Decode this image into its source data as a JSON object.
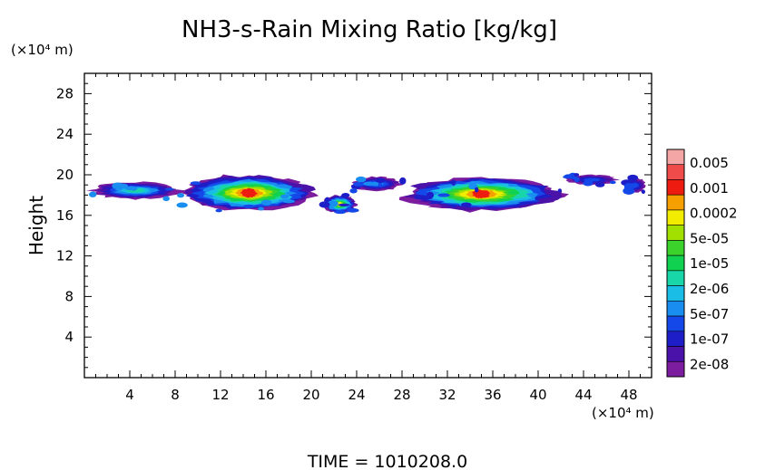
{
  "title": "NH3-s-Rain Mixing Ratio [kg/kg]",
  "footer": "TIME  =  1010208.0",
  "chart_data": {
    "type": "heatmap",
    "title": "NH3-s-Rain Mixing Ratio [kg/kg]",
    "xlabel": "",
    "ylabel": "Height",
    "x_unit_label": "(×10⁴ m)",
    "y_unit_label": "(×10⁴ m)",
    "xlim": [
      0,
      50
    ],
    "ylim": [
      0,
      30
    ],
    "x_ticks": [
      4,
      8,
      12,
      16,
      20,
      24,
      28,
      32,
      36,
      40,
      44,
      48
    ],
    "y_ticks": [
      4,
      8,
      12,
      16,
      20,
      24,
      28
    ],
    "grid": false,
    "legend": {
      "placement": "right",
      "labels": [
        "0.005",
        "0.001",
        "0.0002",
        "5e-05",
        "1e-05",
        "2e-06",
        "5e-07",
        "1e-07",
        "2e-08"
      ],
      "colors": [
        "#f4a6a6",
        "#f04b4b",
        "#ee1c10",
        "#f5a000",
        "#f2ec00",
        "#a2e000",
        "#3cd22c",
        "#10d250",
        "#18d6a8",
        "#19bde6",
        "#1a8ef0",
        "#1448e8",
        "#1e1ec8",
        "#4a12a8",
        "#7c1da0"
      ]
    },
    "regions": [
      {
        "name": "layer-west",
        "x": [
          8.5,
          20.5
        ],
        "y": [
          16.4,
          20.0
        ],
        "peak_level": 2
      },
      {
        "name": "layer-west-tail",
        "x": [
          0.5,
          8.5
        ],
        "y": [
          17.6,
          19.3
        ],
        "peak_level": 8
      },
      {
        "name": "cell-22",
        "x": [
          21.0,
          24.0
        ],
        "y": [
          16.2,
          18.0
        ],
        "peak_level": 4
      },
      {
        "name": "layer-mid-tail",
        "x": [
          23.5,
          28.0
        ],
        "y": [
          18.4,
          19.8
        ],
        "peak_level": 10
      },
      {
        "name": "layer-east",
        "x": [
          28.0,
          42.0
        ],
        "y": [
          16.4,
          19.8
        ],
        "peak_level": 2
      },
      {
        "name": "cell-44",
        "x": [
          42.5,
          47.0
        ],
        "y": [
          19.0,
          20.0
        ],
        "peak_level": 11
      },
      {
        "name": "cell-48",
        "x": [
          47.5,
          49.5
        ],
        "y": [
          18.2,
          19.7
        ],
        "peak_level": 11
      }
    ]
  }
}
